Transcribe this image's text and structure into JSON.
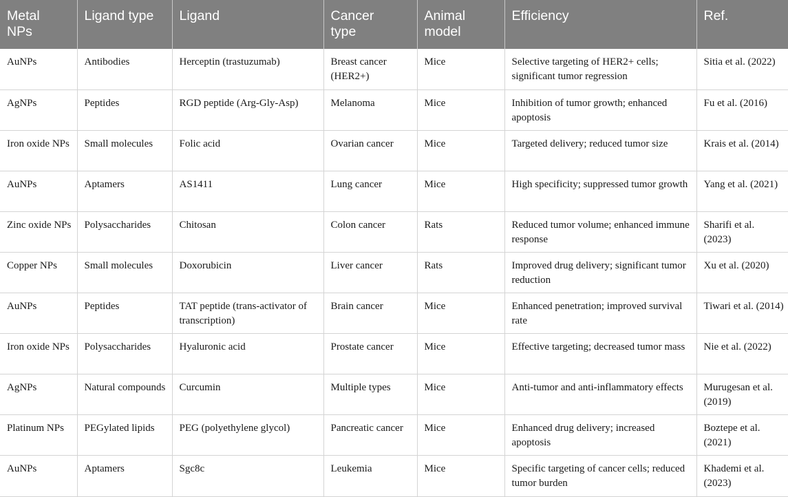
{
  "table": {
    "headers": [
      "Metal\nNPs",
      "Ligand type",
      "Ligand",
      "Cancer\ntype",
      "Animal\nmodel",
      "Efficiency",
      "Ref."
    ],
    "rows": [
      [
        "AuNPs",
        "Antibodies",
        "Herceptin (trastuzumab)",
        "Breast cancer (HER2+)",
        "Mice",
        "Selective targeting of HER2+ cells; significant tumor regression",
        "Sitia et al. (2022)"
      ],
      [
        "AgNPs",
        "Peptides",
        "RGD peptide (Arg-Gly-Asp)",
        "Melanoma",
        "Mice",
        "Inhibition of tumor growth; enhanced apoptosis",
        "Fu et al. (2016)"
      ],
      [
        "Iron oxide NPs",
        "Small molecules",
        "Folic acid",
        "Ovarian cancer",
        "Mice",
        "Targeted delivery; reduced tumor size",
        "Krais et al. (2014)"
      ],
      [
        "AuNPs",
        "Aptamers",
        "AS1411",
        "Lung cancer",
        "Mice",
        "High specificity; suppressed tumor growth",
        "Yang et al. (2021)"
      ],
      [
        "Zinc oxide NPs",
        "Polysaccharides",
        "Chitosan",
        "Colon cancer",
        "Rats",
        "Reduced tumor volume; enhanced immune response",
        "Sharifi et al. (2023)"
      ],
      [
        "Copper NPs",
        "Small molecules",
        "Doxorubicin",
        "Liver cancer",
        "Rats",
        "Improved drug delivery; significant tumor reduction",
        "Xu et al. (2020)"
      ],
      [
        "AuNPs",
        "Peptides",
        "TAT peptide (trans-activator of transcription)",
        "Brain cancer",
        "Mice",
        "Enhanced penetration; improved survival rate",
        "Tiwari et al. (2014)"
      ],
      [
        "Iron oxide NPs",
        "Polysaccharides",
        "Hyaluronic acid",
        "Prostate cancer",
        "Mice",
        "Effective targeting; decreased tumor mass",
        "Nie et al. (2022)"
      ],
      [
        "AgNPs",
        "Natural compounds",
        "Curcumin",
        "Multiple types",
        "Mice",
        "Anti-tumor and anti-inflammatory effects",
        "Murugesan et al. (2019)"
      ],
      [
        "Platinum NPs",
        "PEGylated lipids",
        "PEG (polyethylene glycol)",
        "Pancreatic cancer",
        "Mice",
        "Enhanced drug delivery; increased apoptosis",
        "Boztepe et al. (2021)"
      ],
      [
        "AuNPs",
        "Aptamers",
        "Sgc8c",
        "Leukemia",
        "Mice",
        "Specific targeting of cancer cells; reduced tumor burden",
        "Khademi et al. (2023)"
      ]
    ]
  }
}
